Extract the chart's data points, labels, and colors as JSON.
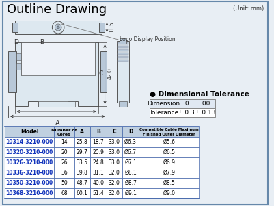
{
  "title": "Outline Drawing",
  "unit_text": "(Unit: mm)",
  "bg_color": "#e8eef4",
  "border_color": "#6688aa",
  "title_color": "#000000",
  "dim_tolerance_title": "● Dimensional Tolerance",
  "dim_table": {
    "headers": [
      "Dimension",
      ".0",
      ".00"
    ],
    "row": [
      "Tolerance",
      "± 0.3",
      "± 0.13"
    ]
  },
  "main_table": {
    "headers": [
      "Model",
      "Number of Cores",
      "A",
      "B",
      "C",
      "D",
      "Compatible Cable Maximum Finished Outer Diameter"
    ],
    "header_bg": "#c0d0e0",
    "rows": [
      [
        "10314-3210-000",
        "14",
        "25.8",
        "18.7",
        "33.0",
        "Ø6.3",
        "Ø5.6"
      ],
      [
        "10320-3210-000",
        "20",
        "29.7",
        "20.9",
        "33.0",
        "Ø6.7",
        "Ø6.5"
      ],
      [
        "10326-3210-000",
        "26",
        "33.5",
        "24.8",
        "33.0",
        "Ø7.1",
        "Ø6.9"
      ],
      [
        "10336-3210-000",
        "36",
        "39.8",
        "31.1",
        "32.0",
        "Ø8.1",
        "Ø7.9"
      ],
      [
        "10350-3210-000",
        "50",
        "48.7",
        "40.0",
        "32.0",
        "Ø8.7",
        "Ø8.5"
      ],
      [
        "10368-3210-000",
        "68",
        "60.1",
        "51.4",
        "32.0",
        "Ø9.1",
        "Ø9.0"
      ]
    ],
    "model_color": "#1133bb",
    "row_bg": "#ffffff"
  },
  "drawing": {
    "label_A": "A",
    "label_B": "B",
    "label_C": "C",
    "label_D": "D",
    "dim_115": "11.5",
    "dim_420": "42.0",
    "logo_text": "Logo Display Position"
  }
}
